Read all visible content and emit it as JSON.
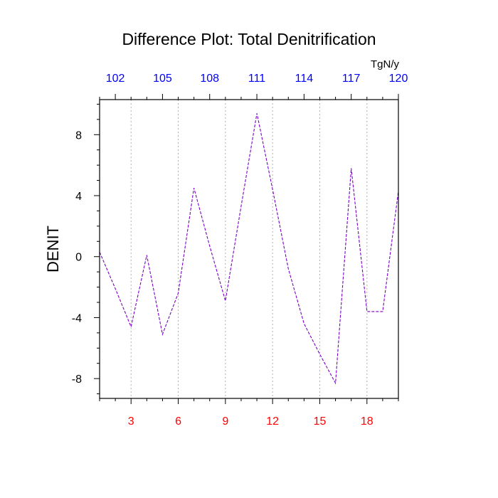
{
  "chart_data": {
    "type": "line",
    "title": "Difference Plot: Total Denitrification",
    "ylabel": "DENIT",
    "units_label": "TgN/y",
    "xlim": [
      1,
      20
    ],
    "ylim": [
      -9.3,
      10.3
    ],
    "bottom_ticks": [
      3,
      6,
      9,
      12,
      15,
      18
    ],
    "bottom_tick_labels": [
      "3",
      "6",
      "9",
      "12",
      "15",
      "18"
    ],
    "top_ticks": [
      2,
      5,
      8,
      11,
      14,
      17,
      20
    ],
    "top_tick_labels": [
      "102",
      "105",
      "108",
      "111",
      "114",
      "117",
      "120"
    ],
    "y_major_ticks": [
      -8,
      -4,
      0,
      4,
      8
    ],
    "y_tick_labels": [
      "-8",
      "-4",
      "0",
      "4",
      "8"
    ],
    "x_grid": true,
    "x": [
      1,
      2,
      3,
      4,
      5,
      6,
      7,
      8,
      9,
      10,
      11,
      12,
      13,
      14,
      15,
      16,
      17,
      18,
      19,
      20
    ],
    "series": [
      {
        "values": [
          0.3,
          -2.1,
          -4.6,
          0.1,
          -5.1,
          -2.4,
          4.5,
          0.7,
          -2.9,
          3.3,
          9.4,
          4.4,
          -0.8,
          -4.4,
          -6.4,
          -8.3,
          5.8,
          -3.6,
          -3.6,
          4.3
        ],
        "color": "#7a00c8",
        "dashed": true
      }
    ],
    "colors": {
      "bottom_tick_labels": "#ff0000",
      "top_tick_labels": "#0000ff",
      "y_tick_labels": "#000000"
    }
  }
}
